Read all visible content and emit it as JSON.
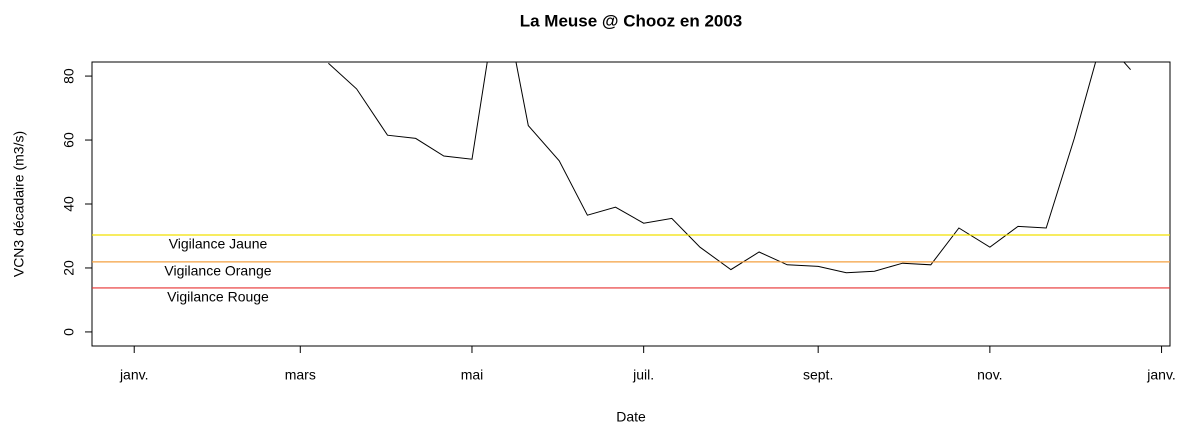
{
  "chart_data": {
    "type": "line",
    "title": "La Meuse @ Chooz en 2003",
    "xlabel": "Date",
    "ylabel": "VCN3 décadaire (m3/s)",
    "x": [
      "2003-03-11",
      "2003-03-21",
      "2003-04-01",
      "2003-04-11",
      "2003-04-21",
      "2003-05-01",
      "2003-05-11",
      "2003-05-21",
      "2003-06-01",
      "2003-06-11",
      "2003-06-21",
      "2003-07-01",
      "2003-07-11",
      "2003-07-21",
      "2003-08-01",
      "2003-08-11",
      "2003-08-21",
      "2003-09-01",
      "2003-09-11",
      "2003-09-21",
      "2003-10-01",
      "2003-10-11",
      "2003-10-21",
      "2003-11-01",
      "2003-11-11",
      "2003-11-21",
      "2003-12-01",
      "2003-12-11",
      "2003-12-21"
    ],
    "series": [
      {
        "color": "#000000",
        "values": [
          84,
          76,
          61.5,
          60.5,
          55,
          54,
          110,
          64.5,
          53.5,
          36.5,
          39,
          34,
          35.5,
          26.5,
          19.5,
          25,
          21,
          20.5,
          18.5,
          19,
          21.5,
          21,
          32.5,
          26.5,
          33,
          32.5,
          60.5,
          92,
          82
        ]
      }
    ],
    "thresholds": [
      {
        "name": "Vigilance Jaune",
        "value": 30.3,
        "color": "#f2e000"
      },
      {
        "name": "Vigilance Orange",
        "value": 21.9,
        "color": "#f4a040"
      },
      {
        "name": "Vigilance Rouge",
        "value": 13.75,
        "color": "#e83030"
      }
    ],
    "xlim": [
      "2002-12-17",
      "2004-01-04"
    ],
    "xticks": [
      {
        "value": "2003-01-01",
        "label": "janv."
      },
      {
        "value": "2003-03-01",
        "label": "mars"
      },
      {
        "value": "2003-05-01",
        "label": "mai"
      },
      {
        "value": "2003-07-01",
        "label": "juil."
      },
      {
        "value": "2003-09-01",
        "label": "sept."
      },
      {
        "value": "2003-11-01",
        "label": "nov."
      },
      {
        "value": "2004-01-01",
        "label": "janv."
      }
    ],
    "ylim": [
      -4.4,
      84.4
    ],
    "yticks": [
      0,
      20,
      40,
      60,
      80
    ]
  }
}
